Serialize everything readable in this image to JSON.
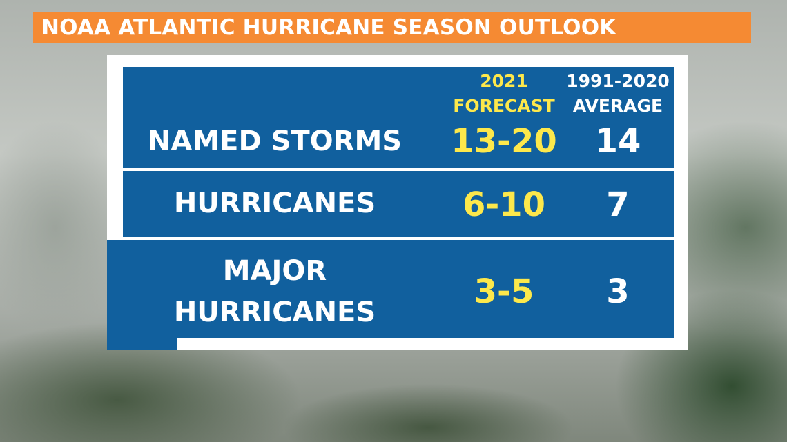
{
  "title": "NOAA ATLANTIC HURRICANE SEASON OUTLOOK",
  "colors": {
    "title_bar": "#f58a33",
    "panel_blue": "#11609e",
    "forecast_text": "#fde84b",
    "average_text": "#ffffff"
  },
  "columns": {
    "forecast_line1": "2021",
    "forecast_line2": "FORECAST",
    "average_line1": "1991-2020",
    "average_line2": "AVERAGE"
  },
  "rows": [
    {
      "label_line1": "NAMED STORMS",
      "label_line2": "",
      "forecast": "13-20",
      "average": "14"
    },
    {
      "label_line1": "HURRICANES",
      "label_line2": "",
      "forecast": "6-10",
      "average": "7"
    },
    {
      "label_line1": "MAJOR",
      "label_line2": "HURRICANES",
      "forecast": "3-5",
      "average": "3"
    }
  ]
}
